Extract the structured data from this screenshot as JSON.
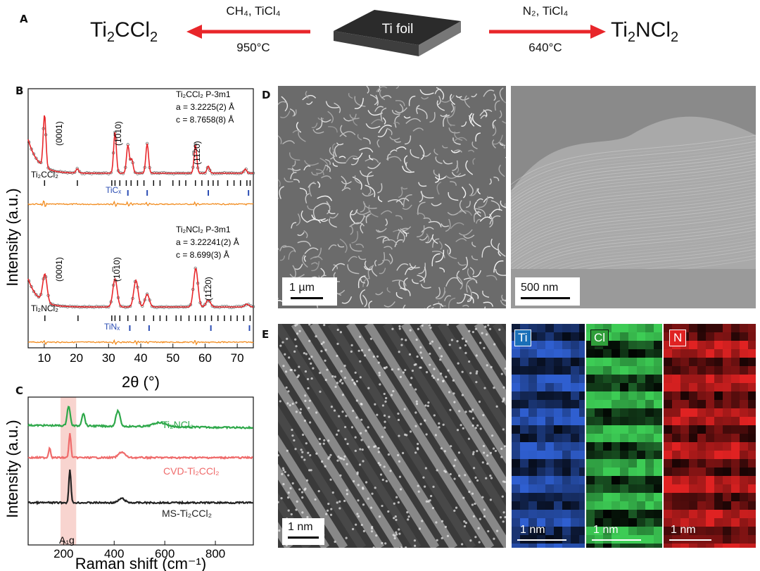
{
  "panelA": {
    "label": "A",
    "left_product": "Ti₂CCl₂",
    "left_reagents": "CH₄, TiCl₄",
    "left_temp": "950°C",
    "center": "Ti foil",
    "right_reagents": "N₂, TiCl₄",
    "right_temp": "640°C",
    "right_product": "Ti₂NCl₂",
    "arrow_color": "#e8262a"
  },
  "panelB": {
    "label": "B",
    "ylabel": "Intensity (a.u.)",
    "xlabel": "2θ (°)",
    "top_info": [
      "Ti₂CCl₂  P-3m1",
      "a = 3.2225(2) Å",
      "c = 8.7658(8) Å"
    ],
    "bottom_info": [
      "Ti₂NCl₂  P-3m1",
      "a = 3.22241(2) Å",
      "c = 8.699(3) Å"
    ],
    "top_phase": "Ti₂CCl₂",
    "top_impurity": "TiCₓ",
    "bottom_phase": "Ti₂NCl₂",
    "bottom_impurity": "TiNₓ",
    "hkl": [
      "(0001)",
      "(10̅10)",
      "(11̅20)"
    ],
    "fit_color": "#e8262a",
    "residual_color": "#f28c1f",
    "impurity_color": "#2b4db3"
  },
  "panelC": {
    "label": "C",
    "ylabel": "Intensity (a.u.)",
    "xlabel": "Raman shift (cm⁻¹)",
    "peak_label": "A₁g",
    "series_names": [
      "Ti₂NCl₂",
      "CVD-Ti₂CCl₂",
      "MS-Ti₂CCl₂"
    ],
    "series_colors": [
      "#2ea84a",
      "#ef6b6b",
      "#222222"
    ]
  },
  "panelD": {
    "label": "D",
    "scale_left": "1 µm",
    "scale_right": "500 nm"
  },
  "panelE": {
    "label": "E",
    "scale_main": "1 nm",
    "maps": [
      {
        "element": "Ti",
        "scale": "1 nm",
        "color": "#2f5fd0"
      },
      {
        "element": "Cl",
        "scale": "1 nm",
        "color": "#3dcc55"
      },
      {
        "element": "N",
        "scale": "1 nm",
        "color": "#e02222"
      }
    ]
  },
  "chart_data": [
    {
      "type": "line",
      "title": "",
      "xlabel": "2θ (°)",
      "ylabel": "Intensity (a.u.)",
      "xlim": [
        5,
        75
      ],
      "xticks": [
        10,
        20,
        30,
        40,
        50,
        60,
        70
      ],
      "series": [
        {
          "name": "Ti₂CCl₂",
          "peaks_2theta": [
            10.1,
            20.3,
            32.0,
            36.0,
            37.2,
            42.0,
            57.0,
            61.0,
            72.5
          ]
        },
        {
          "name": "Ti₂NCl₂",
          "peaks_2theta": [
            10.2,
            32.0,
            38.5,
            42.0,
            57.1,
            61.0,
            73.0
          ]
        }
      ]
    },
    {
      "type": "line",
      "title": "",
      "xlabel": "Raman shift (cm⁻¹)",
      "ylabel": "Intensity (a.u.)",
      "xlim": [
        60,
        950
      ],
      "xticks": [
        200,
        400,
        600,
        800
      ],
      "series": [
        {
          "name": "Ti₂NCl₂",
          "peaks_cm": [
            220,
            278,
            415,
            580
          ]
        },
        {
          "name": "CVD-Ti₂CCl₂",
          "peaks_cm": [
            145,
            225,
            430
          ]
        },
        {
          "name": "MS-Ti₂CCl₂",
          "peaks_cm": [
            225,
            430
          ]
        }
      ]
    }
  ]
}
